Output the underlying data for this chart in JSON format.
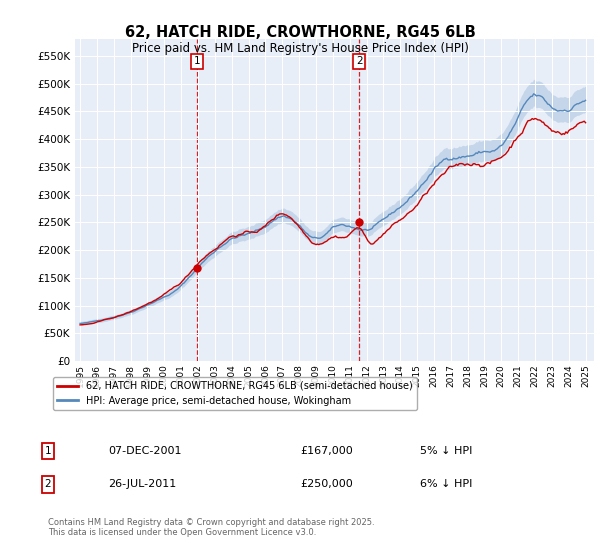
{
  "title": "62, HATCH RIDE, CROWTHORNE, RG45 6LB",
  "subtitle": "Price paid vs. HM Land Registry's House Price Index (HPI)",
  "ylim": [
    0,
    580000
  ],
  "yticks": [
    0,
    50000,
    100000,
    150000,
    200000,
    250000,
    300000,
    350000,
    400000,
    450000,
    500000,
    550000
  ],
  "background_color": "#e8eef8",
  "legend_label_red": "62, HATCH RIDE, CROWTHORNE, RG45 6LB (semi-detached house)",
  "legend_label_blue": "HPI: Average price, semi-detached house, Wokingham",
  "footer": "Contains HM Land Registry data © Crown copyright and database right 2025.\nThis data is licensed under the Open Government Licence v3.0.",
  "annotation1": {
    "num": "1",
    "date": "07-DEC-2001",
    "price": "£167,000",
    "pct": "5% ↓ HPI"
  },
  "annotation2": {
    "num": "2",
    "date": "26-JUL-2011",
    "price": "£250,000",
    "pct": "6% ↓ HPI"
  },
  "vline1_x": 2001.92,
  "vline2_x": 2011.57,
  "sale1_x": 2001.92,
  "sale1_y": 167000,
  "sale2_x": 2011.57,
  "sale2_y": 250000,
  "red_color": "#cc0000",
  "blue_color": "#5588bb",
  "blue_fill": "#aac4e0",
  "xmin": 1994.7,
  "xmax": 2025.5,
  "xticks": [
    1995,
    1996,
    1997,
    1998,
    1999,
    2000,
    2001,
    2002,
    2003,
    2004,
    2005,
    2006,
    2007,
    2008,
    2009,
    2010,
    2011,
    2012,
    2013,
    2014,
    2015,
    2016,
    2017,
    2018,
    2019,
    2020,
    2021,
    2022,
    2023,
    2024,
    2025
  ]
}
